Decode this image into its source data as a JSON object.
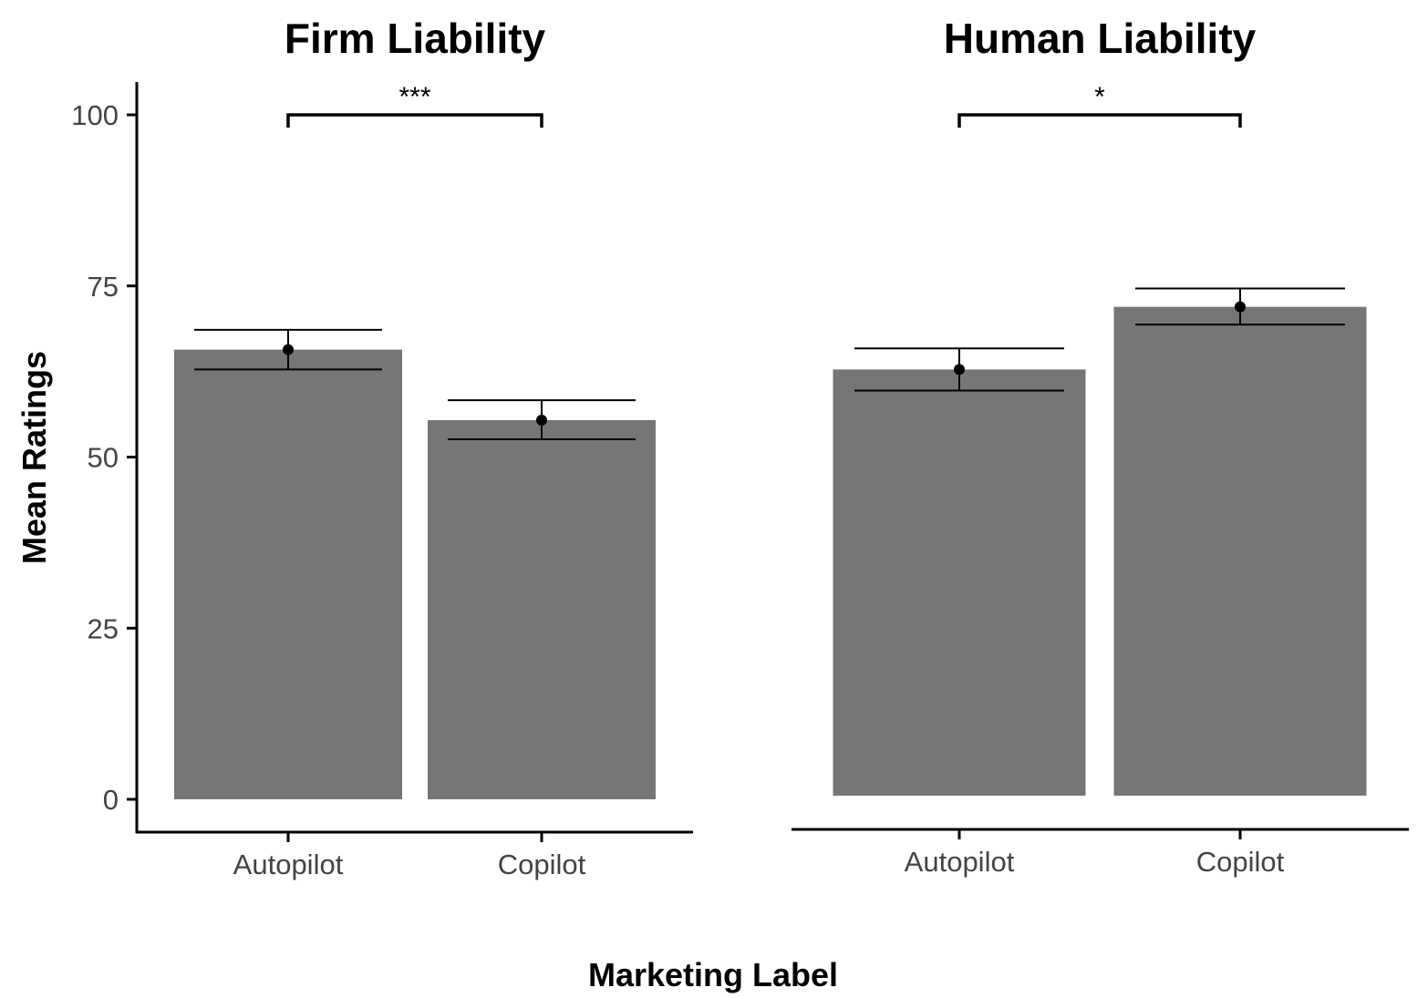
{
  "chart_data": {
    "type": "bar",
    "xlabel": "Marketing Label",
    "ylabel": "Mean Ratings",
    "ylim": [
      0,
      105
    ],
    "yticks": [
      0,
      25,
      50,
      75,
      100
    ],
    "bar_color": "#767676",
    "grid": false,
    "panels": [
      {
        "title": "Firm Liability",
        "categories": [
          "Autopilot",
          "Copilot"
        ],
        "values": [
          65.7,
          55.4
        ],
        "error_low": [
          62.8,
          52.6
        ],
        "error_high": [
          68.6,
          58.3
        ],
        "significance": {
          "from": "Autopilot",
          "to": "Copilot",
          "label": "***",
          "y": 100
        }
      },
      {
        "title": "Human Liability",
        "categories": [
          "Autopilot",
          "Copilot"
        ],
        "values": [
          62.6,
          71.8
        ],
        "error_low": [
          59.5,
          69.2
        ],
        "error_high": [
          65.7,
          74.5
        ],
        "significance": {
          "from": "Autopilot",
          "to": "Copilot",
          "label": "*",
          "y": 100
        }
      }
    ]
  }
}
